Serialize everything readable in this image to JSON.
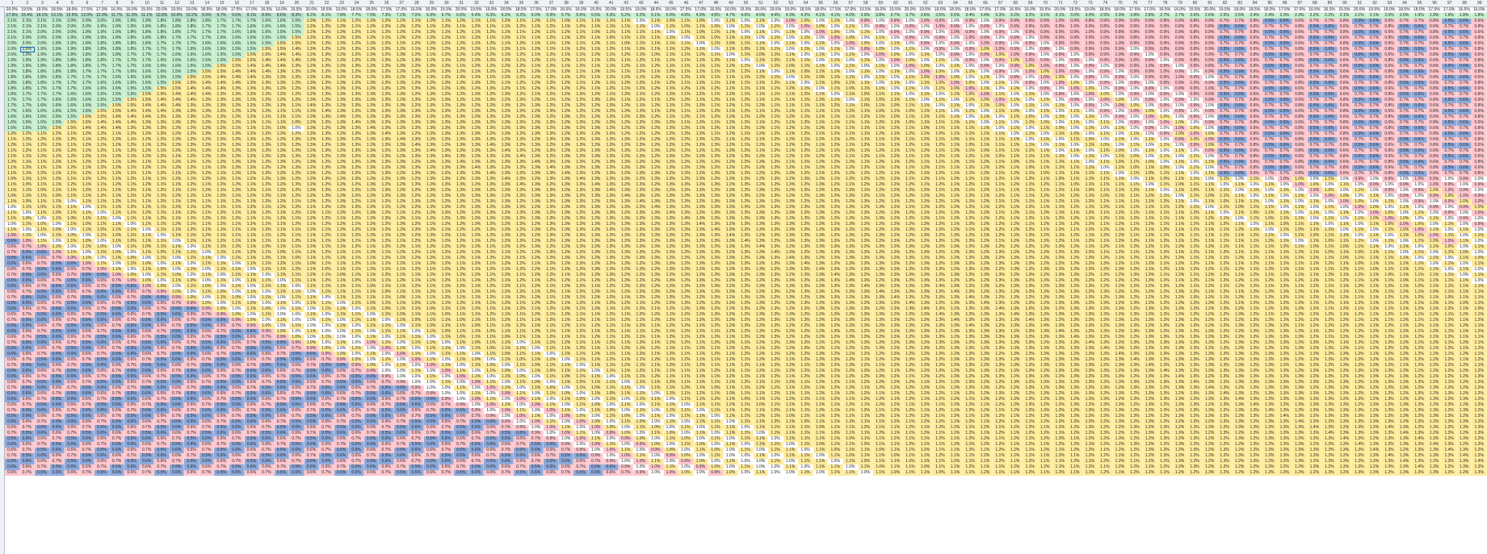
{
  "sheet": {
    "columns_visible": 99,
    "rows_visible": 83,
    "header_row_values": [
      "20.0%",
      "19.5%",
      "19.0%",
      "18.5%",
      "18.0%",
      "17.5%",
      "17.0%",
      "16.5%",
      "16.0%",
      "15.5%"
    ],
    "first_row_values": [
      "17.6%",
      "15.4%",
      "14.1%",
      "13.1%",
      "12.5%",
      "12.0%",
      "12.0%",
      "11.7%",
      "11.2%",
      "11.1%",
      "10.8%",
      "10.6%",
      "10.2%",
      "9.9%",
      "9.7%",
      "9.6%",
      "9.1%",
      "8.9%",
      "8.6%",
      "8.3%",
      "8.2%",
      "8.1%",
      "7.8%",
      "7.7%",
      "7.5%",
      "7.3%",
      "7.1%",
      "7.0%",
      "6.9%",
      "6.7%",
      "6.6%",
      "6.4%",
      "6.3%",
      "6.2%",
      "6.2%",
      "6.0%",
      "5.9%",
      "5.7%",
      "5.6%",
      "5.5%",
      "5.3%",
      "5.2%",
      "5.2%",
      "5.1%",
      "5.0%",
      "4.9%",
      "4.9%",
      "4.8%",
      "4.7%",
      "4.6%",
      "4.5%",
      "4.4%",
      "4.3%",
      "4.2%",
      "4.1%",
      "4.1%",
      "4.0%",
      "3.9%",
      "3.8%",
      "3.7%",
      "3.7%",
      "3.6%",
      "3.5%",
      "3.5%",
      "3.4%",
      "3.4%",
      "3.3%",
      "3.2%",
      "3.2%",
      "3.1%",
      "3.1%",
      "3.0%",
      "3.0%",
      "2.9%",
      "2.9%",
      "2.8%",
      "2.8%",
      "2.7%",
      "2.7%",
      "2.6%",
      "2.6%",
      "2.5%",
      "2.5%",
      "2.4%",
      "2.4%",
      "2.3%",
      "2.3%",
      "2.2%",
      "2.2%",
      "2.1%",
      "2.1%",
      "2.1%",
      "2.0%",
      "2.0%",
      "1.9%",
      "1.9%",
      "1.9%",
      "1.8%",
      "1.8%"
    ],
    "selected_cell": {
      "row": 7,
      "col": 2,
      "value": "2.0%"
    }
  },
  "colors": {
    "green": "#c6efce",
    "yellow": "#ffeb9c",
    "pink": "#ffc7ce",
    "blue": "#8eaadb",
    "teal": "#b7e1cd",
    "white": "#ffffff",
    "header_bg": "#eef1f5"
  },
  "cell_scale": {
    "blue_below": 0.6,
    "pink_below": 1.0,
    "white_at": 1.0,
    "yellow_below": 1.5,
    "green_at_or_above": 1.5
  }
}
